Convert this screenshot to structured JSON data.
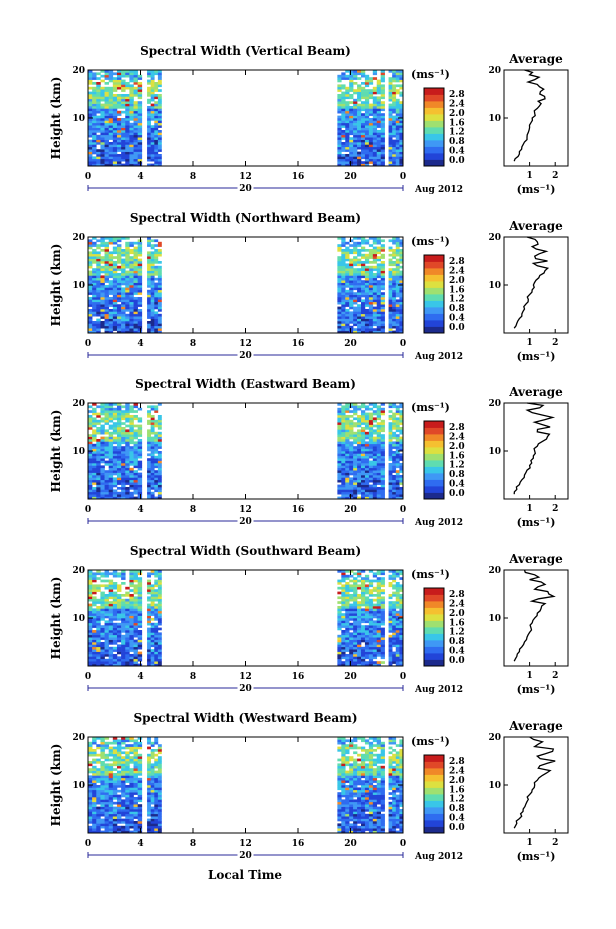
{
  "figure": {
    "xlabel": "Local Time",
    "date_label": "Aug 2012",
    "day_label": "20",
    "ylabel": "Height (km)",
    "avg_title": "Average",
    "unit": "(ms⁻¹)",
    "x_ticks": [
      "0",
      "4",
      "8",
      "12",
      "16",
      "20",
      "0"
    ],
    "y_ticks": [
      "20",
      "10"
    ],
    "avg_x_ticks": [
      "1",
      "2"
    ],
    "colorbar": {
      "ticks": [
        "2.8",
        "2.4",
        "2.0",
        "1.6",
        "1.2",
        "0.8",
        "0.4",
        "0.0"
      ],
      "colors": [
        "#1c2a8c",
        "#2244d8",
        "#2f6cf0",
        "#3f98f5",
        "#39c6e8",
        "#5fdcb0",
        "#9fe070",
        "#dde040",
        "#f5c030",
        "#f08828",
        "#e04828",
        "#c81c1c"
      ]
    }
  },
  "chart_data": [
    {
      "type": "heatmap",
      "title": "Spectral Width (Vertical Beam)",
      "xlabel": "Local Time",
      "ylabel": "Height (km)",
      "xlim": [
        0,
        24
      ],
      "ylim": [
        0,
        20
      ],
      "data_windows_hours": [
        [
          0,
          4.1
        ],
        [
          4.5,
          5.6
        ],
        [
          19.0,
          22.6
        ],
        [
          22.9,
          24.0
        ]
      ],
      "colorbar_range": [
        0.0,
        3.0
      ],
      "average_profile": {
        "xlabel": "(ms⁻¹)",
        "xlim": [
          0,
          2.5
        ],
        "ylim": [
          0,
          20
        ],
        "heights": [
          1,
          2,
          3,
          4,
          5,
          6,
          7,
          8,
          9,
          10,
          11,
          12,
          13,
          14,
          15,
          16,
          17,
          18,
          19,
          20
        ],
        "values": [
          0.4,
          0.55,
          0.6,
          0.7,
          0.8,
          0.9,
          0.95,
          1.0,
          1.05,
          1.1,
          1.2,
          1.3,
          1.45,
          1.6,
          1.4,
          1.55,
          1.3,
          1.2,
          1.0,
          0.8
        ]
      }
    },
    {
      "type": "heatmap",
      "title": "Spectral Width (Northward Beam)",
      "xlabel": "Local Time",
      "ylabel": "Height (km)",
      "xlim": [
        0,
        24
      ],
      "ylim": [
        0,
        20
      ],
      "data_windows_hours": [
        [
          0,
          4.1
        ],
        [
          4.5,
          5.6
        ],
        [
          19.0,
          22.6
        ],
        [
          22.9,
          24.0
        ]
      ],
      "colorbar_range": [
        0.0,
        3.0
      ],
      "average_profile": {
        "xlabel": "(ms⁻¹)",
        "xlim": [
          0,
          2.5
        ],
        "ylim": [
          0,
          20
        ],
        "heights": [
          1,
          2,
          3,
          4,
          5,
          6,
          7,
          8,
          9,
          10,
          11,
          12,
          13,
          14,
          15,
          16,
          17,
          18,
          19,
          20
        ],
        "values": [
          0.4,
          0.5,
          0.6,
          0.7,
          0.8,
          0.85,
          0.95,
          1.0,
          1.1,
          1.15,
          1.25,
          1.4,
          1.6,
          1.3,
          1.7,
          1.2,
          1.65,
          1.1,
          1.3,
          0.9
        ]
      }
    },
    {
      "type": "heatmap",
      "title": "Spectral Width (Eastward Beam)",
      "xlabel": "Local Time",
      "ylabel": "Height (km)",
      "xlim": [
        0,
        24
      ],
      "ylim": [
        0,
        20
      ],
      "data_windows_hours": [
        [
          0,
          4.1
        ],
        [
          4.5,
          5.6
        ],
        [
          19.0,
          22.6
        ],
        [
          22.9,
          24.0
        ]
      ],
      "colorbar_range": [
        0.0,
        3.0
      ],
      "average_profile": {
        "xlabel": "(ms⁻¹)",
        "xlim": [
          0,
          2.5
        ],
        "ylim": [
          0,
          20
        ],
        "heights": [
          1,
          2,
          3,
          4,
          5,
          6,
          7,
          8,
          9,
          10,
          11,
          12,
          13,
          14,
          15,
          16,
          17,
          18,
          19,
          20
        ],
        "values": [
          0.4,
          0.5,
          0.6,
          0.7,
          0.8,
          0.9,
          1.0,
          1.05,
          1.15,
          1.2,
          1.3,
          1.5,
          1.7,
          1.3,
          1.8,
          1.2,
          1.9,
          1.1,
          1.4,
          0.9
        ]
      }
    },
    {
      "type": "heatmap",
      "title": "Spectral Width (Southward Beam)",
      "xlabel": "Local Time",
      "ylabel": "Height (km)",
      "xlim": [
        0,
        24
      ],
      "ylim": [
        0,
        20
      ],
      "data_windows_hours": [
        [
          0,
          4.1
        ],
        [
          4.5,
          5.6
        ],
        [
          19.0,
          22.6
        ],
        [
          22.9,
          24.0
        ]
      ],
      "colorbar_range": [
        0.0,
        3.0
      ],
      "average_profile": {
        "xlabel": "(ms⁻¹)",
        "xlim": [
          0,
          2.5
        ],
        "ylim": [
          0,
          20
        ],
        "heights": [
          1,
          2,
          3,
          4,
          5,
          6,
          7,
          8,
          9,
          10,
          11,
          12,
          13,
          14,
          15,
          16,
          17,
          18,
          19,
          20
        ],
        "values": [
          0.4,
          0.5,
          0.6,
          0.7,
          0.8,
          0.9,
          1.0,
          1.05,
          1.1,
          1.2,
          1.3,
          1.45,
          1.6,
          1.35,
          1.75,
          1.2,
          1.6,
          1.0,
          1.2,
          0.8
        ]
      }
    },
    {
      "type": "heatmap",
      "title": "Spectral Width (Westward Beam)",
      "xlabel": "Local Time",
      "ylabel": "Height (km)",
      "xlim": [
        0,
        24
      ],
      "ylim": [
        0,
        20
      ],
      "data_windows_hours": [
        [
          0,
          4.1
        ],
        [
          4.5,
          5.6
        ],
        [
          19.0,
          22.6
        ],
        [
          22.9,
          24.0
        ]
      ],
      "colorbar_range": [
        0.0,
        3.0
      ],
      "average_profile": {
        "xlabel": "(ms⁻¹)",
        "xlim": [
          0,
          2.5
        ],
        "ylim": [
          0,
          20
        ],
        "heights": [
          1,
          2,
          3,
          4,
          5,
          6,
          7,
          8,
          9,
          10,
          11,
          12,
          13,
          14,
          15,
          16,
          17,
          18,
          19,
          20
        ],
        "values": [
          0.4,
          0.5,
          0.6,
          0.65,
          0.75,
          0.85,
          0.95,
          1.0,
          1.1,
          1.2,
          1.3,
          1.5,
          1.8,
          1.4,
          2.0,
          1.3,
          1.9,
          1.2,
          1.5,
          1.0
        ]
      }
    }
  ]
}
